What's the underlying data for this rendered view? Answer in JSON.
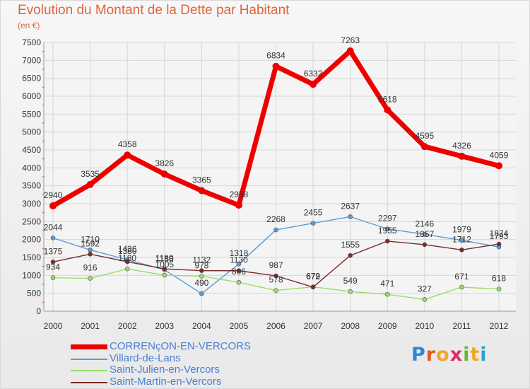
{
  "title": "Evolution du Montant de la Dette par Habitant",
  "subtitle": "(en €)",
  "logo": {
    "text": "Proxiti",
    "letter_colors": [
      "#2f88d6",
      "#e05a2a",
      "#f0a82a",
      "#e02a6a",
      "#63b83a",
      "#f0a82a",
      "#2fa0d0"
    ]
  },
  "chart_data": {
    "type": "line",
    "title": "Evolution du Montant de la Dette par Habitant",
    "subtitle": "(en €)",
    "x": [
      "2000",
      "2001",
      "2002",
      "2003",
      "2004",
      "2005",
      "2006",
      "2007",
      "2008",
      "2009",
      "2010",
      "2011",
      "2012"
    ],
    "ylim": [
      0,
      7500
    ],
    "yticks": [
      "0",
      "500",
      "1000",
      "1500",
      "2000",
      "2500",
      "3000",
      "3500",
      "4000",
      "4500",
      "5000",
      "5500",
      "6000",
      "6500",
      "7000",
      "7500"
    ],
    "grid": true,
    "legend": "bottom-left",
    "series": [
      {
        "name": "CORRENçON-EN-VERCORS",
        "color": "#ee0000",
        "width": 7,
        "values": [
          2940,
          3535,
          4358,
          3826,
          3365,
          2958,
          6834,
          6332,
          7263,
          5618,
          4595,
          4326,
          4059
        ],
        "labels": [
          "2940",
          "3535",
          "4358",
          "3826",
          "3365",
          "2958",
          "6834",
          "6332",
          "7263",
          "5618",
          "4595",
          "4326",
          "4059"
        ]
      },
      {
        "name": "Villard-de-Lans",
        "color": "#5b9bd5",
        "width": 1.4,
        "values": [
          2044,
          1710,
          1436,
          1156,
          490,
          1318,
          2268,
          2455,
          2637,
          2297,
          2146,
          1979,
          1793
        ],
        "labels": [
          "2044",
          "1710",
          "1436",
          "1156",
          "490",
          "1318",
          "2268",
          "2455",
          "2637",
          "2297",
          "2146",
          "1979",
          "1793"
        ]
      },
      {
        "name": "Saint-Julien-en-Vercors",
        "color": "#99dd66",
        "width": 1.4,
        "values": [
          934,
          916,
          1180,
          1005,
          978,
          806,
          578,
          679,
          549,
          471,
          327,
          671,
          618
        ],
        "labels": [
          "934",
          "916",
          "1180",
          "1005",
          "978",
          "806",
          "578",
          "679",
          "549",
          "471",
          "327",
          "671",
          "618"
        ]
      },
      {
        "name": "Saint-Martin-en-Vercors",
        "color": "#7a2a2a",
        "width": 1.4,
        "values": [
          1375,
          1592,
          1380,
          1180,
          1132,
          1130,
          987,
          672,
          1555,
          1955,
          1857,
          1712,
          1874
        ],
        "labels": [
          "1375",
          "1592",
          "1380",
          "1180",
          "1132",
          "1130",
          "987",
          "672",
          "1555",
          "1955",
          "1857",
          "1712",
          "1874"
        ]
      }
    ]
  }
}
